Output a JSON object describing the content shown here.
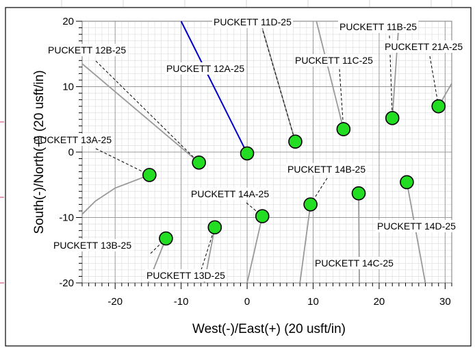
{
  "chart_data": {
    "type": "scatter",
    "xlabel": "West(-)/East(+) (20 usft/in)",
    "ylabel": "South(-)/North(+) (20 usft/in)",
    "xlim": [
      -25,
      31
    ],
    "ylim": [
      -20,
      20
    ],
    "xticks": [
      -20,
      -10,
      0,
      10,
      20,
      30
    ],
    "yticks": [
      -20,
      -10,
      0,
      10,
      20
    ],
    "grid": true,
    "marker_color": "#22dd22",
    "highlight_trajectory": "PUCKETT 12A-25",
    "highlight_color": "#0000cc",
    "trajectory_color": "#999999",
    "series": [
      {
        "name": "PUCKETT 12A-25",
        "surface": [
          0.0,
          -0.2
        ],
        "path": [
          [
            0.0,
            -0.2
          ],
          [
            -10.0,
            20.0
          ]
        ]
      },
      {
        "name": "PUCKETT 12B-25",
        "surface": [
          -7.3,
          -1.6
        ],
        "path": [
          [
            -7.3,
            -1.6
          ],
          [
            -25.0,
            13.5
          ]
        ]
      },
      {
        "name": "PUCKETT 11D-25",
        "surface": [
          7.3,
          1.6
        ],
        "path": [
          [
            7.3,
            1.6
          ],
          [
            2.0,
            20.0
          ]
        ]
      },
      {
        "name": "PUCKETT 11C-25",
        "surface": [
          14.6,
          3.5
        ],
        "path": [
          [
            14.6,
            3.5
          ],
          [
            10.5,
            20.0
          ]
        ]
      },
      {
        "name": "PUCKETT 11B-25",
        "surface": [
          22.0,
          5.2
        ],
        "path": [
          [
            22.0,
            5.2
          ],
          [
            23.0,
            20.0
          ]
        ]
      },
      {
        "name": "PUCKETT 21A-25",
        "surface": [
          29.0,
          7.0
        ],
        "path": [
          [
            29.0,
            7.0
          ],
          [
            31.0,
            10.5
          ]
        ]
      },
      {
        "name": "PUCKETT 13A-25",
        "surface": [
          -14.8,
          -3.5
        ],
        "path": [
          [
            -14.8,
            -3.5
          ],
          [
            -20.0,
            -5.5
          ],
          [
            -23.0,
            -7.5
          ],
          [
            -25.0,
            -9.5
          ]
        ]
      },
      {
        "name": "PUCKETT 13B-25",
        "surface": [
          -12.3,
          -13.2
        ],
        "path": [
          [
            -12.3,
            -13.2
          ],
          [
            -15.0,
            -20.0
          ]
        ]
      },
      {
        "name": "PUCKETT 13D-25",
        "surface": [
          -4.9,
          -11.5
        ],
        "path": [
          [
            -4.9,
            -11.5
          ],
          [
            -6.5,
            -20.0
          ]
        ]
      },
      {
        "name": "PUCKETT 14A-25",
        "surface": [
          2.3,
          -9.8
        ],
        "path": [
          [
            2.3,
            -9.8
          ],
          [
            0.0,
            -20.0
          ]
        ]
      },
      {
        "name": "PUCKETT 14B-25",
        "surface": [
          9.6,
          -8.0
        ],
        "path": [
          [
            9.6,
            -8.0
          ],
          [
            8.0,
            -20.0
          ]
        ]
      },
      {
        "name": "PUCKETT 14C-25",
        "surface": [
          16.9,
          -6.3
        ],
        "path": [
          [
            16.9,
            -6.3
          ],
          [
            17.0,
            -20.0
          ]
        ]
      },
      {
        "name": "PUCKETT 14D-25",
        "surface": [
          24.2,
          -4.6
        ],
        "path": [
          [
            24.2,
            -4.6
          ],
          [
            27.0,
            -20.0
          ]
        ]
      }
    ]
  }
}
